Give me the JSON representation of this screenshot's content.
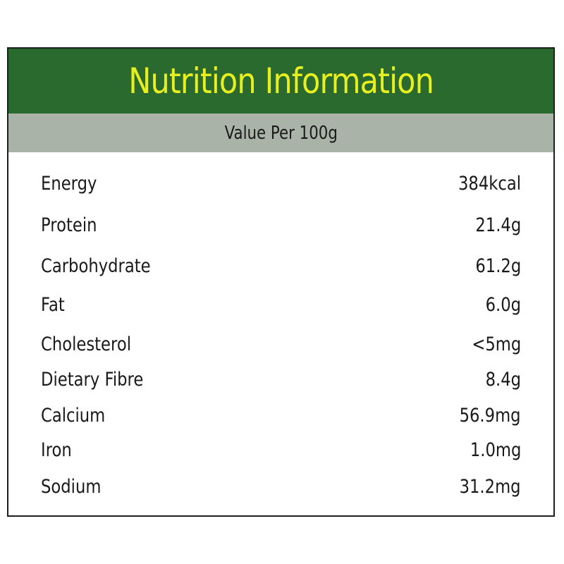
{
  "header": {
    "title": "Nutrition Information",
    "colors": {
      "background": "#2a6a2e",
      "title": "#e8ef1e"
    }
  },
  "subheader": {
    "text": "Value Per 100g",
    "color": "#a9b3a8"
  },
  "nutrients": [
    {
      "label": "Energy",
      "value": "384kcal"
    },
    {
      "label": "Protein",
      "value": "21.4g"
    },
    {
      "label": "Carbohydrate",
      "value": "61.2g"
    },
    {
      "label": "Fat",
      "value": "6.0g"
    },
    {
      "label": "Cholesterol",
      "value": "<5mg"
    },
    {
      "label": "Dietary Fibre",
      "value": "8.4g"
    },
    {
      "label": "Calcium",
      "value": "56.9mg"
    },
    {
      "label": "Iron",
      "value": "1.0mg"
    },
    {
      "label": "Sodium",
      "value": "31.2mg"
    }
  ]
}
